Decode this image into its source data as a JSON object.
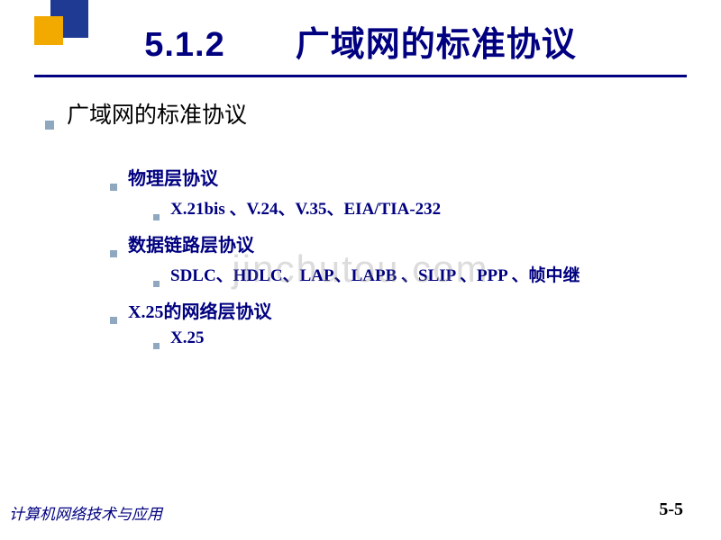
{
  "title": "5.1.2　　广域网的标准协议",
  "colors": {
    "navy": "#000080",
    "deco_navy": "#1f3a93",
    "deco_orange": "#f2a900",
    "bullet": "#8fa8bf",
    "bg": "#ffffff",
    "watermark": "rgba(130,130,130,0.28)"
  },
  "bullets": {
    "lvl1": [
      {
        "text": "广域网的标准协议"
      }
    ],
    "lvl2_a": {
      "text": "物理层协议"
    },
    "lvl3_a": {
      "text": "X.21bis 、V.24、V.35、EIA/TIA-232"
    },
    "lvl2_b": {
      "text": "数据链路层协议"
    },
    "lvl3_b": {
      "text": "SDLC、HDLC、LAP、LAPB 、SLIP 、PPP 、帧中继"
    },
    "lvl2_c": {
      "text": "X.25的网络层协议"
    },
    "lvl3_c": {
      "text": "X.25"
    }
  },
  "watermark": "jinchutou.com",
  "footer": {
    "left": "计算机网络技术与应用",
    "right": "5-5"
  }
}
